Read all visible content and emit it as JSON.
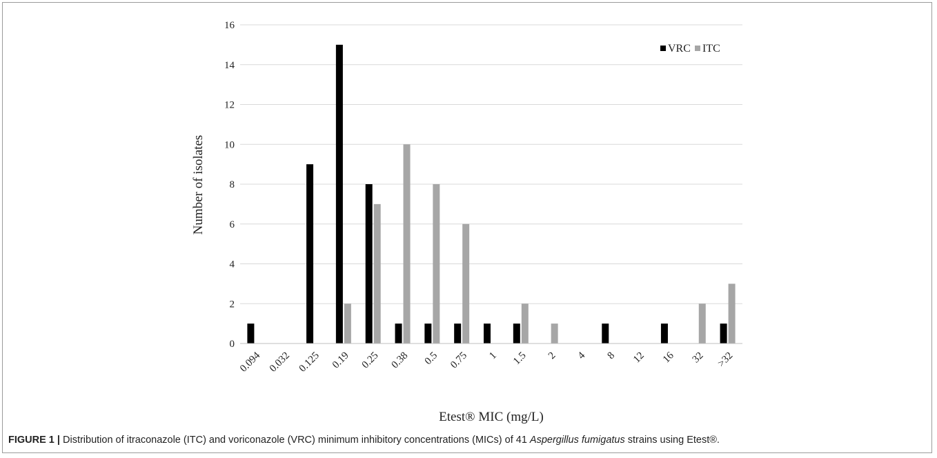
{
  "caption": {
    "label": "FIGURE 1 |",
    "text_before": " Distribution of itraconazole (ITC) and voriconazole (VRC) minimum inhibitory concentrations (MICs) of 41 ",
    "species": "Aspergillus fumigatus",
    "text_after": " strains using Etest®."
  },
  "colors": {
    "VRC": "#000000",
    "ITC": "#a6a6a6",
    "grid": "#d9d9d9",
    "axis": "#bfbfbf"
  },
  "chart_data": {
    "type": "bar",
    "xlabel": "Etest® MIC (mg/L)",
    "ylabel": "Number of isolates",
    "ylim": [
      0,
      16
    ],
    "yticks": [
      0,
      2,
      4,
      6,
      8,
      10,
      12,
      14,
      16
    ],
    "grid": true,
    "legend_position": "top-right",
    "categories": [
      "0.094",
      "0.032",
      "0.125",
      "0.19",
      "0.25",
      "0.38",
      "0.5",
      "0.75",
      "1",
      "1.5",
      "2",
      "4",
      "8",
      "12",
      "16",
      "32",
      ">32"
    ],
    "series": [
      {
        "name": "VRC",
        "values": [
          1,
          0,
          9,
          15,
          8,
          1,
          1,
          1,
          1,
          1,
          0,
          0,
          1,
          0,
          1,
          0,
          1
        ]
      },
      {
        "name": "ITC",
        "values": [
          0,
          0,
          0,
          2,
          7,
          10,
          8,
          6,
          0,
          2,
          1,
          0,
          0,
          0,
          0,
          2,
          3
        ]
      }
    ]
  }
}
